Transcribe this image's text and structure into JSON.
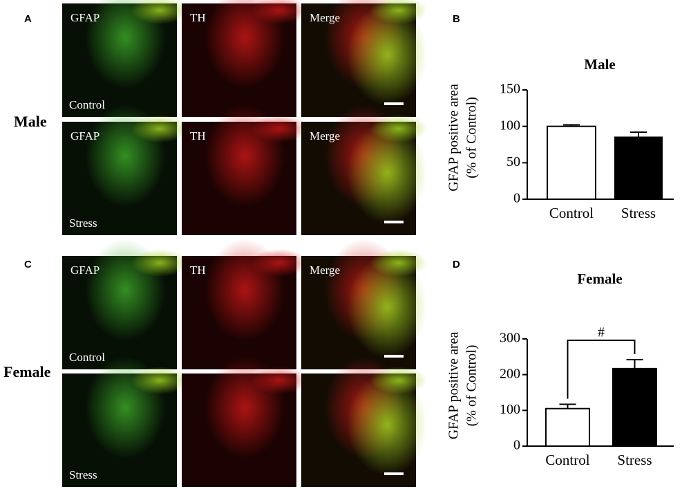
{
  "panels": [
    {
      "label": "A",
      "group": "Male",
      "columns": [
        "GFAP",
        "TH",
        "Merge"
      ],
      "rows": [
        "Control",
        "Stress"
      ]
    },
    {
      "label": "C",
      "group": "Female",
      "columns": [
        "GFAP",
        "TH",
        "Merge"
      ],
      "rows": [
        "Control",
        "Stress"
      ]
    }
  ],
  "chart_data": [
    {
      "type": "bar",
      "panel_label": "B",
      "title": "Male",
      "ylabel": [
        "GFAP positive area",
        "(% of Control)"
      ],
      "categories": [
        "Control",
        "Stress"
      ],
      "values": [
        100,
        85
      ],
      "errors": [
        2,
        7
      ],
      "colors": [
        "#ffffff",
        "#000000"
      ],
      "ylim": [
        0,
        150
      ],
      "yticks": [
        0,
        50,
        100,
        150
      ]
    },
    {
      "type": "bar",
      "panel_label": "D",
      "title": "Female",
      "ylabel": [
        "GFAP positive area",
        "(% of Control)"
      ],
      "categories": [
        "Control",
        "Stress"
      ],
      "values": [
        105,
        217
      ],
      "errors": [
        12,
        25
      ],
      "colors": [
        "#ffffff",
        "#000000"
      ],
      "ylim": [
        0,
        300
      ],
      "yticks": [
        0,
        100,
        200,
        300
      ],
      "annotation": "#"
    }
  ]
}
